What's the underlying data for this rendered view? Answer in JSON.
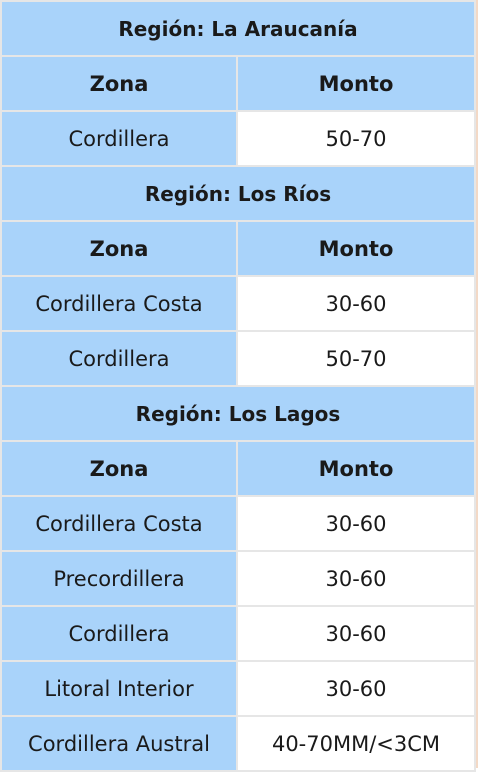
{
  "table": {
    "sections": [
      {
        "title": "Región: La Araucanía",
        "header": [
          "Zona",
          "Monto"
        ],
        "rows": [
          [
            "Cordillera",
            "50-70"
          ]
        ]
      },
      {
        "title": "Región: Los Ríos",
        "header": [
          "Zona",
          "Monto"
        ],
        "rows": [
          [
            "Cordillera Costa",
            "30-60"
          ],
          [
            "Cordillera",
            "50-70"
          ]
        ]
      },
      {
        "title": "Región: Los Lagos",
        "header": [
          "Zona",
          "Monto"
        ],
        "rows": [
          [
            "Cordillera Costa",
            "30-60"
          ],
          [
            "Precordillera",
            "30-60"
          ],
          [
            "Cordillera",
            "30-60"
          ],
          [
            "Litoral Interior",
            "30-60"
          ],
          [
            "Cordillera Austral",
            "40-70MM/<3CM"
          ]
        ]
      }
    ]
  }
}
